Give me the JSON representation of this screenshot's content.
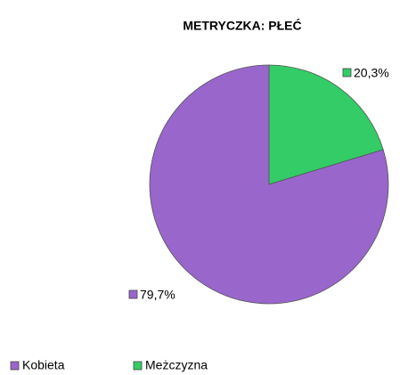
{
  "chart_data": {
    "type": "pie",
    "title": "METRYCZKA: PŁEĆ",
    "categories": [
      "Kobieta",
      "Meżczyzna"
    ],
    "values": [
      79.7,
      20.3
    ],
    "value_labels": [
      "79,7%",
      "20,3%"
    ],
    "colors": [
      "#9966cc",
      "#33cc66"
    ],
    "legend": "bottom"
  }
}
